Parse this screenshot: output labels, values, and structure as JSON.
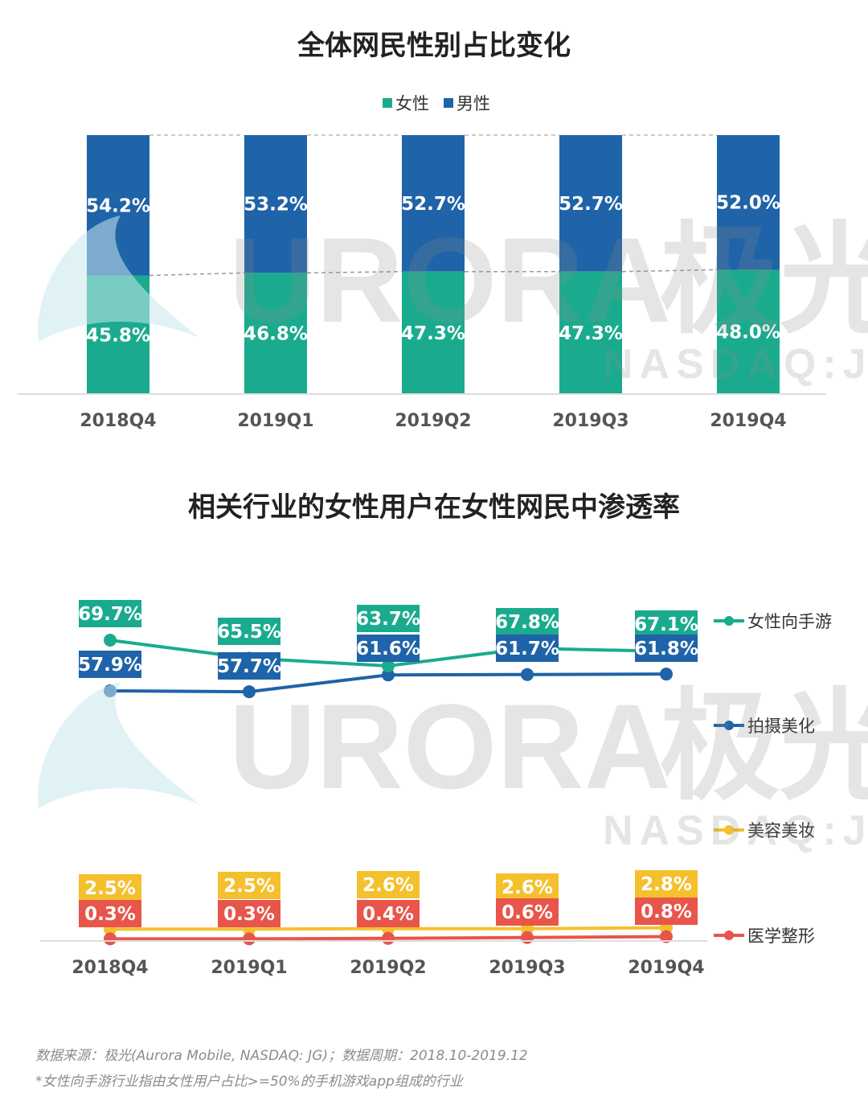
{
  "chart_data": [
    {
      "type": "bar",
      "stacked": true,
      "title": "全体网民性别占比变化",
      "categories": [
        "2018Q4",
        "2019Q1",
        "2019Q2",
        "2019Q3",
        "2019Q4"
      ],
      "series": [
        {
          "name": "女性",
          "values": [
            45.8,
            46.8,
            47.3,
            47.3,
            48.0
          ],
          "labels": [
            "45.8%",
            "46.8%",
            "47.3%",
            "47.3%",
            "48.0%"
          ],
          "color": "#1aab8e"
        },
        {
          "name": "男性",
          "values": [
            54.2,
            53.2,
            52.7,
            52.7,
            52.0
          ],
          "labels": [
            "54.2%",
            "53.2%",
            "52.7%",
            "52.7%",
            "52.0%"
          ],
          "color": "#1f63a8"
        }
      ],
      "ylim": [
        0,
        100
      ],
      "legend": "top-center"
    },
    {
      "type": "line",
      "title": "相关行业的女性用户在女性网民中渗透率",
      "categories": [
        "2018Q4",
        "2019Q1",
        "2019Q2",
        "2019Q3",
        "2019Q4"
      ],
      "series": [
        {
          "name": "女性向手游",
          "values": [
            69.7,
            65.5,
            63.7,
            67.8,
            67.1
          ],
          "labels": [
            "69.7%",
            "65.5%",
            "63.7%",
            "67.8%",
            "67.1%"
          ],
          "color": "#1aab8e"
        },
        {
          "name": "拍摄美化",
          "values": [
            57.9,
            57.7,
            61.6,
            61.7,
            61.8
          ],
          "labels": [
            "57.9%",
            "57.7%",
            "61.6%",
            "61.7%",
            "61.8%"
          ],
          "color": "#1f63a8"
        },
        {
          "name": "美容美妆",
          "values": [
            2.5,
            2.5,
            2.6,
            2.6,
            2.8
          ],
          "labels": [
            "2.5%",
            "2.5%",
            "2.6%",
            "2.6%",
            "2.8%"
          ],
          "color": "#f5c02e"
        },
        {
          "name": "医学整形",
          "values": [
            0.3,
            0.3,
            0.4,
            0.6,
            0.8
          ],
          "labels": [
            "0.3%",
            "0.3%",
            "0.4%",
            "0.6%",
            "0.8%"
          ],
          "color": "#e8554a"
        }
      ],
      "legend": "right"
    }
  ],
  "watermark": {
    "brand": "URORA",
    "brand_cn": "极光",
    "ticker": "NASDAQ:JG"
  },
  "footnotes": [
    "数据来源：极光(Aurora Mobile, NASDAQ: JG)；数据周期：2018.10-2019.12",
    "*女性向手游行业指由女性用户占比>=50%的手机游戏app组成的行业"
  ]
}
